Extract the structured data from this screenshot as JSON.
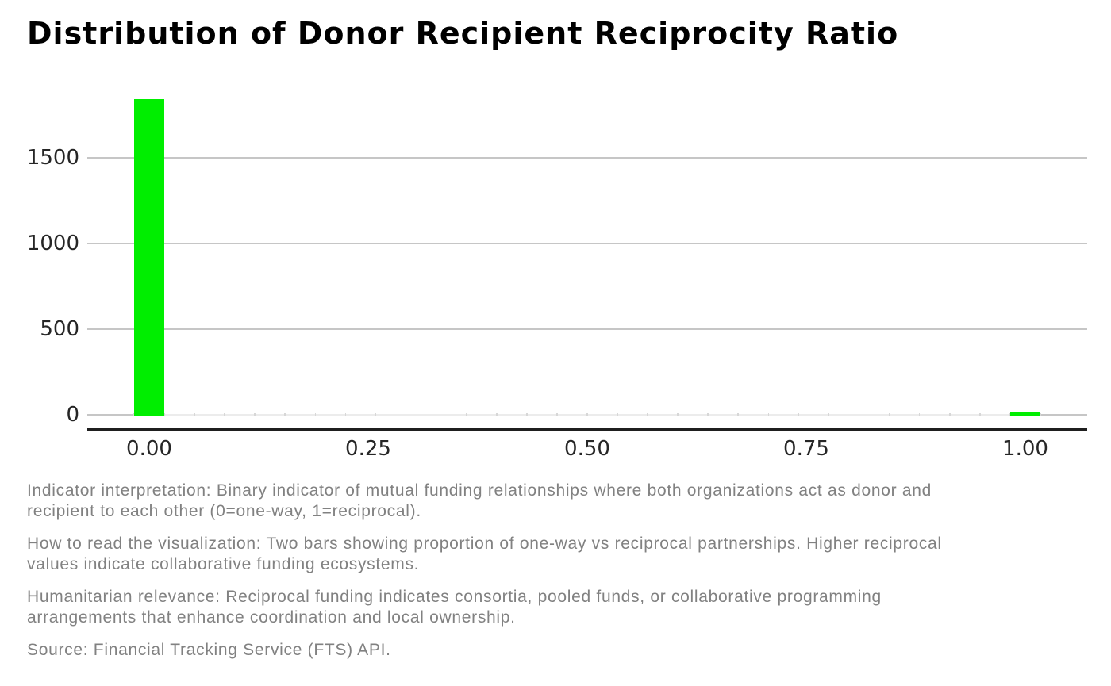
{
  "chart_data": {
    "type": "bar",
    "subtype": "histogram",
    "title": "Distribution of Donor Recipient Reciprocity Ratio",
    "xlabel": "",
    "ylabel": "",
    "bar_color": "#00ee00",
    "grid": "horizontal",
    "legend": "none",
    "x_tick_labels": [
      "0.00",
      "0.25",
      "0.50",
      "0.75",
      "1.00"
    ],
    "x_tick_values": [
      0,
      0.25,
      0.5,
      0.75,
      1.0
    ],
    "y_tick_values": [
      0,
      500,
      1000,
      1500
    ],
    "xlim": [
      -0.07,
      1.07
    ],
    "ylim": [
      0,
      1950
    ],
    "n_bins": 30,
    "bin_start": -0.01724,
    "bin_width": 0.03448,
    "values": [
      1845,
      0,
      0,
      0,
      0,
      0,
      0,
      0,
      0,
      0,
      0,
      0,
      0,
      0,
      0,
      0,
      0,
      0,
      0,
      0,
      0,
      0,
      0,
      0,
      0,
      0,
      0,
      0,
      0,
      18
    ],
    "highlights": {
      "count_at_ratio_0": 1845,
      "count_at_ratio_1": 18
    }
  },
  "notes": {
    "indicator": "Indicator interpretation: Binary indicator of mutual funding relationships where both organizations act as donor and\nrecipient to each other (0=one-way, 1=reciprocal).",
    "how_to_read": "How to read the visualization: Two bars showing proportion of one-way vs reciprocal partnerships. Higher reciprocal\nvalues indicate collaborative funding ecosystems.",
    "relevance": "Humanitarian relevance: Reciprocal funding indicates consortia, pooled funds, or collaborative programming\narrangements that enhance coordination and local ownership.",
    "source": "Source: Financial Tracking Service (FTS) API."
  }
}
